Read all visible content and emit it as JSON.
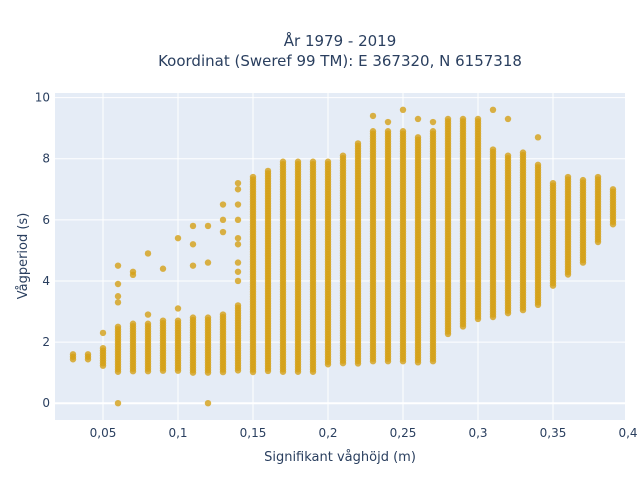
{
  "chart_data": {
    "type": "scatter",
    "title_line1": "År 1979 - 2019",
    "title_line2": "Koordinat (Sweref 99 TM): E 367320, N 6157318",
    "xlabel": "Signifikant våghöjd (m)",
    "ylabel": "Vågperiod (s)",
    "xlim": [
      0.018,
      0.398
    ],
    "ylim": [
      -0.55,
      10.15
    ],
    "x_ticks": [
      {
        "value": 0.05,
        "label": "0,05"
      },
      {
        "value": 0.1,
        "label": "0,1"
      },
      {
        "value": 0.15,
        "label": "0,15"
      },
      {
        "value": 0.2,
        "label": "0,2"
      },
      {
        "value": 0.25,
        "label": "0,25"
      },
      {
        "value": 0.3,
        "label": "0,3"
      },
      {
        "value": 0.35,
        "label": "0,35"
      },
      {
        "value": 0.4,
        "label": "0,4"
      }
    ],
    "y_ticks": [
      {
        "value": 0,
        "label": "0"
      },
      {
        "value": 2,
        "label": "2"
      },
      {
        "value": 4,
        "label": "4"
      },
      {
        "value": 6,
        "label": "6"
      },
      {
        "value": 8,
        "label": "8"
      },
      {
        "value": 10,
        "label": "10"
      }
    ],
    "grid": true,
    "background_color": "#e5ecf6",
    "marker_color": "#d4a017",
    "series": [
      {
        "columns": [
          {
            "x": 0.03,
            "ymin": 1.4,
            "ymax": 1.6,
            "extra": []
          },
          {
            "x": 0.04,
            "ymin": 1.4,
            "ymax": 1.6,
            "extra": []
          },
          {
            "x": 0.05,
            "ymin": 1.2,
            "ymax": 1.8,
            "extra": [
              2.3
            ]
          },
          {
            "x": 0.06,
            "ymin": 1.0,
            "ymax": 2.5,
            "extra": [
              0.0,
              3.3,
              3.5,
              3.9,
              4.5
            ]
          },
          {
            "x": 0.07,
            "ymin": 1.0,
            "ymax": 2.6,
            "extra": [
              4.2,
              4.3
            ]
          },
          {
            "x": 0.08,
            "ymin": 1.0,
            "ymax": 2.6,
            "extra": [
              2.9,
              4.9
            ]
          },
          {
            "x": 0.09,
            "ymin": 1.0,
            "ymax": 2.7,
            "extra": [
              4.4
            ]
          },
          {
            "x": 0.1,
            "ymin": 1.0,
            "ymax": 2.7,
            "extra": [
              3.1,
              5.4
            ]
          },
          {
            "x": 0.11,
            "ymin": 1.0,
            "ymax": 2.8,
            "extra": [
              4.5,
              5.2,
              5.8
            ]
          },
          {
            "x": 0.12,
            "ymin": 1.0,
            "ymax": 2.8,
            "extra": [
              0.0,
              4.6,
              5.8
            ]
          },
          {
            "x": 0.13,
            "ymin": 1.0,
            "ymax": 2.9,
            "extra": [
              5.6,
              6.0,
              6.5
            ]
          },
          {
            "x": 0.14,
            "ymin": 1.0,
            "ymax": 3.2,
            "extra": [
              4.0,
              4.3,
              4.6,
              5.2,
              5.4,
              6.0,
              6.5,
              7.0,
              7.2
            ]
          },
          {
            "x": 0.15,
            "ymin": 1.0,
            "ymax": 7.4,
            "extra": []
          },
          {
            "x": 0.16,
            "ymin": 1.0,
            "ymax": 7.6,
            "extra": []
          },
          {
            "x": 0.17,
            "ymin": 1.0,
            "ymax": 7.9,
            "extra": []
          },
          {
            "x": 0.18,
            "ymin": 1.0,
            "ymax": 7.9,
            "extra": []
          },
          {
            "x": 0.19,
            "ymin": 1.0,
            "ymax": 7.9,
            "extra": []
          },
          {
            "x": 0.2,
            "ymin": 1.2,
            "ymax": 7.9,
            "extra": []
          },
          {
            "x": 0.21,
            "ymin": 1.3,
            "ymax": 8.1,
            "extra": []
          },
          {
            "x": 0.22,
            "ymin": 1.3,
            "ymax": 8.5,
            "extra": []
          },
          {
            "x": 0.23,
            "ymin": 1.3,
            "ymax": 8.9,
            "extra": [
              9.4
            ]
          },
          {
            "x": 0.24,
            "ymin": 1.3,
            "ymax": 8.9,
            "extra": [
              9.2
            ]
          },
          {
            "x": 0.25,
            "ymin": 1.3,
            "ymax": 8.9,
            "extra": [
              9.6
            ]
          },
          {
            "x": 0.26,
            "ymin": 1.3,
            "ymax": 8.7,
            "extra": [
              9.3
            ]
          },
          {
            "x": 0.27,
            "ymin": 1.3,
            "ymax": 8.9,
            "extra": [
              9.2
            ]
          },
          {
            "x": 0.28,
            "ymin": 2.2,
            "ymax": 9.3,
            "extra": []
          },
          {
            "x": 0.29,
            "ymin": 2.5,
            "ymax": 9.3,
            "extra": []
          },
          {
            "x": 0.3,
            "ymin": 2.7,
            "ymax": 9.3,
            "extra": []
          },
          {
            "x": 0.31,
            "ymin": 2.8,
            "ymax": 8.3,
            "extra": [
              9.6
            ]
          },
          {
            "x": 0.32,
            "ymin": 2.9,
            "ymax": 8.1,
            "extra": [
              9.3
            ]
          },
          {
            "x": 0.33,
            "ymin": 3.0,
            "ymax": 8.2,
            "extra": []
          },
          {
            "x": 0.34,
            "ymin": 3.2,
            "ymax": 7.8,
            "extra": [
              8.7
            ]
          },
          {
            "x": 0.35,
            "ymin": 3.8,
            "ymax": 7.2,
            "extra": []
          },
          {
            "x": 0.36,
            "ymin": 4.2,
            "ymax": 7.4,
            "extra": []
          },
          {
            "x": 0.37,
            "ymin": 4.6,
            "ymax": 7.3,
            "extra": []
          },
          {
            "x": 0.38,
            "ymin": 5.2,
            "ymax": 7.4,
            "extra": []
          },
          {
            "x": 0.39,
            "ymin": 5.8,
            "ymax": 7.0,
            "extra": []
          }
        ]
      }
    ]
  }
}
